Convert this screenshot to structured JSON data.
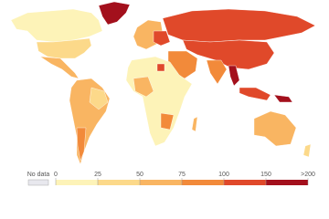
{
  "legend": {
    "no_data_label": "No data",
    "ticks": [
      0,
      25,
      50,
      75,
      100,
      150,
      {
        "value": 200,
        "label": ">200"
      }
    ],
    "colors": [
      "#fdf3b8",
      "#fcd98a",
      "#f9b562",
      "#f28a3a",
      "#e0492a",
      "#a3101c"
    ],
    "no_data_color": "#e8e8ee"
  }
}
